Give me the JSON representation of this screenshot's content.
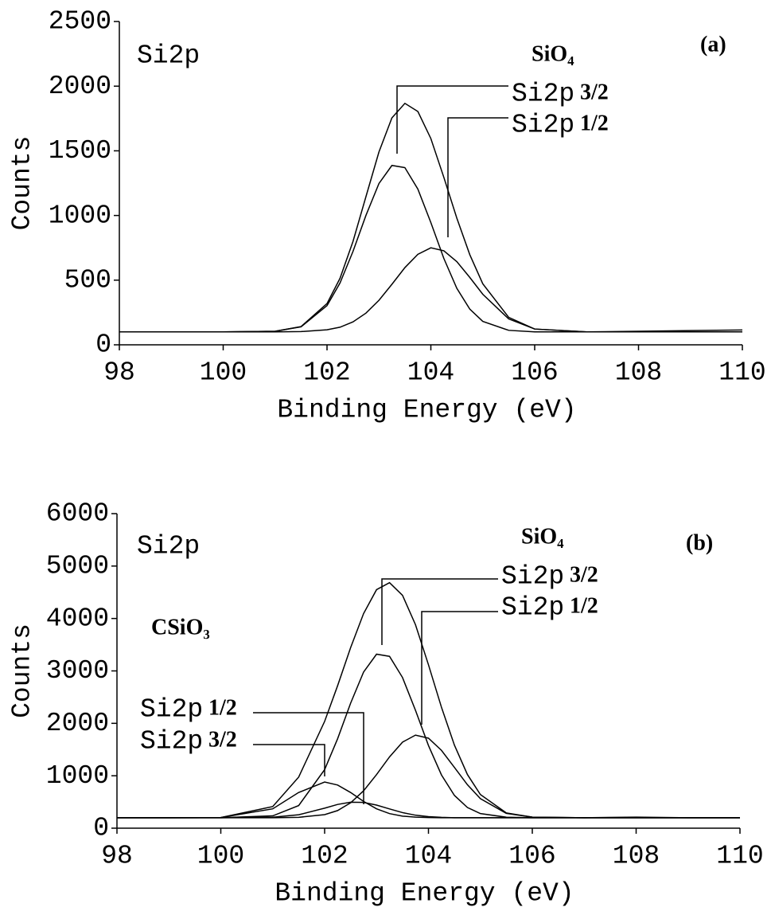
{
  "chart_data": [
    {
      "type": "line",
      "panel": "(a)",
      "region": "Si2p",
      "species": [
        {
          "name": "SiO₄",
          "peaks": [
            {
              "level": "Si2p",
              "state": "3/2"
            },
            {
              "level": "Si2p",
              "state": "1/2"
            }
          ]
        }
      ],
      "x_label": "Binding Energy (eV)",
      "y_label": "Counts",
      "x": [
        98,
        99,
        100,
        101,
        101.5,
        102,
        102.25,
        102.5,
        102.75,
        103,
        103.25,
        103.5,
        103.75,
        104,
        104.25,
        104.5,
        104.75,
        105,
        105.5,
        106,
        107,
        108,
        109,
        110
      ],
      "series": [
        {
          "color": "#000000",
          "values": [
            100,
            100,
            100,
            105,
            141,
            319,
            514,
            799,
            1146,
            1491,
            1755,
            1867,
            1804,
            1595,
            1295,
            980,
            697,
            472,
            212,
            122,
            100,
            105,
            110,
            115
          ]
        },
        {
          "color": "#000000",
          "values": [
            100,
            100,
            100,
            105,
            139,
            303,
            478,
            722,
            1001,
            1247,
            1387,
            1370,
            1204,
            945,
            668,
            437,
            276,
            181,
            112,
            100,
            100,
            100,
            100,
            100
          ]
        },
        {
          "color": "#000000",
          "values": [
            100,
            100,
            100,
            100,
            102,
            116,
            136,
            177,
            245,
            344,
            468,
            597,
            700,
            750,
            727,
            643,
            521,
            391,
            200,
            122,
            100,
            100,
            100,
            100
          ]
        }
      ],
      "xlim": [
        98,
        110
      ],
      "xticks": [
        98,
        100,
        102,
        104,
        106,
        108,
        110
      ],
      "ylim": [
        0,
        2500
      ],
      "yticks": [
        0,
        500,
        1000,
        1500,
        2000,
        2500
      ]
    },
    {
      "type": "line",
      "panel": "(b)",
      "region": "Si2p",
      "species": [
        {
          "name": "SiO₄",
          "peaks": [
            {
              "level": "Si2p",
              "state": "3/2"
            },
            {
              "level": "Si2p",
              "state": "1/2"
            }
          ]
        },
        {
          "name": "CSiO₃",
          "peaks": [
            {
              "level": "Si2p",
              "state": "1/2"
            },
            {
              "level": "Si2p",
              "state": "3/2"
            }
          ]
        }
      ],
      "x_label": "Binding Energy (eV)",
      "y_label": "Counts",
      "x": [
        98,
        99,
        100,
        101,
        101.5,
        102,
        102.25,
        102.5,
        102.75,
        103,
        103.25,
        103.5,
        103.75,
        104,
        104.25,
        104.5,
        104.75,
        105,
        105.5,
        106,
        107,
        108,
        109,
        110
      ],
      "series": [
        {
          "color": "#000000",
          "values": [
            200,
            200,
            203,
            412,
            975,
            2037,
            2718,
            3443,
            4093,
            4550,
            4683,
            4442,
            3881,
            3117,
            2308,
            1584,
            1024,
            642,
            291,
            211,
            200,
            210,
            200,
            200
          ]
        },
        {
          "color": "#000000",
          "values": [
            200,
            200,
            203,
            369,
            681,
            880,
            823,
            681,
            511,
            369,
            278,
            230,
            210,
            203,
            200,
            200,
            200,
            200,
            200,
            200,
            200,
            200,
            200,
            200
          ]
        },
        {
          "color": "#000000",
          "values": [
            200,
            200,
            200,
            208,
            256,
            382,
            453,
            496,
            491,
            440,
            367,
            297,
            248,
            220,
            207,
            200,
            200,
            200,
            200,
            200,
            200,
            200,
            200,
            200
          ]
        },
        {
          "color": "#000000",
          "values": [
            200,
            200,
            200,
            235,
            431,
            1117,
            1706,
            2383,
            2978,
            3319,
            3278,
            2874,
            2248,
            1577,
            1016,
            625,
            395,
            279,
            209,
            200,
            200,
            200,
            200,
            200
          ]
        },
        {
          "color": "#000000",
          "values": [
            200,
            200,
            200,
            200,
            207,
            258,
            336,
            483,
            713,
            1022,
            1360,
            1641,
            1775,
            1717,
            1485,
            1159,
            829,
            563,
            282,
            211,
            200,
            200,
            200,
            200
          ]
        }
      ],
      "xlim": [
        98,
        110
      ],
      "xticks": [
        98,
        100,
        102,
        104,
        106,
        108,
        110
      ],
      "ylim": [
        0,
        6000
      ],
      "yticks": [
        0,
        1000,
        2000,
        3000,
        4000,
        5000,
        6000
      ]
    }
  ]
}
